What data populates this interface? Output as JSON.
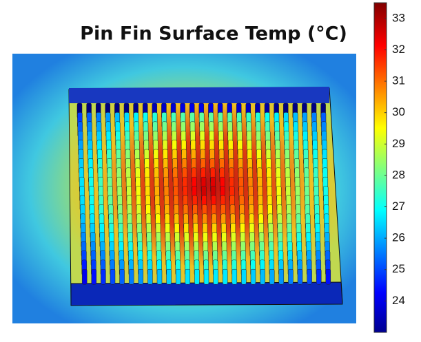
{
  "chart_data": {
    "type": "colormap",
    "title": "Pin Fin Surface Temp (°C)",
    "clim": [
      23.0,
      33.5
    ],
    "cticks": [
      24,
      25,
      26,
      27,
      28,
      29,
      30,
      31,
      32,
      33
    ]
  }
}
